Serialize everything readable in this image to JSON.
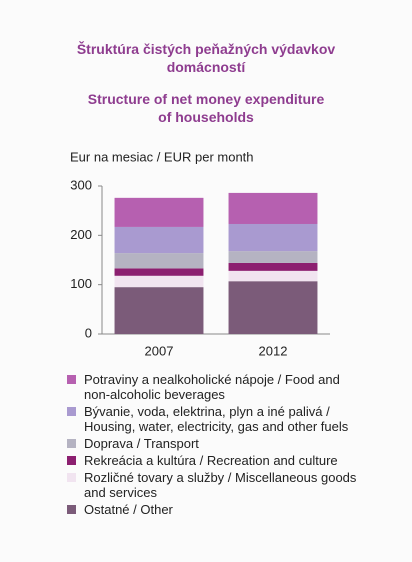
{
  "chart_data": {
    "type": "stacked_bar",
    "title": "Štruktúra čistých peňažných výdavkov domácností",
    "subtitle": "Structure of net money expenditure of households",
    "y_label": "Eur na mesiac / EUR per month",
    "categories": [
      "2007",
      "2012"
    ],
    "series": [
      {
        "name": "Potraviny a nealkoholické nápoje / Food and non-alcoholic beverages",
        "color": "#b660b0",
        "values": [
          59,
          63
        ]
      },
      {
        "name": "Bývanie, voda, elektrina, plyn a iné palivá / Housing, water, electricity, gas and other fuels",
        "color": "#a99ad0",
        "values": [
          53,
          55
        ]
      },
      {
        "name": "Doprava / Transport",
        "color": "#b5b3c2",
        "values": [
          31,
          24
        ]
      },
      {
        "name": "Rekreácia a kultúra / Recreation and culture",
        "color": "#8c1f70",
        "values": [
          15,
          16
        ]
      },
      {
        "name": "Rozličné tovary a služby / Miscellaneous goods and services",
        "color": "#f1e4f0",
        "values": [
          23,
          21
        ]
      },
      {
        "name": "Ostatné / Other",
        "color": "#7b5b79",
        "values": [
          95,
          107
        ]
      }
    ],
    "ylim": [
      0,
      300
    ],
    "yticks": [
      0,
      100,
      200,
      300
    ],
    "grid": false,
    "legend": "bottom"
  }
}
